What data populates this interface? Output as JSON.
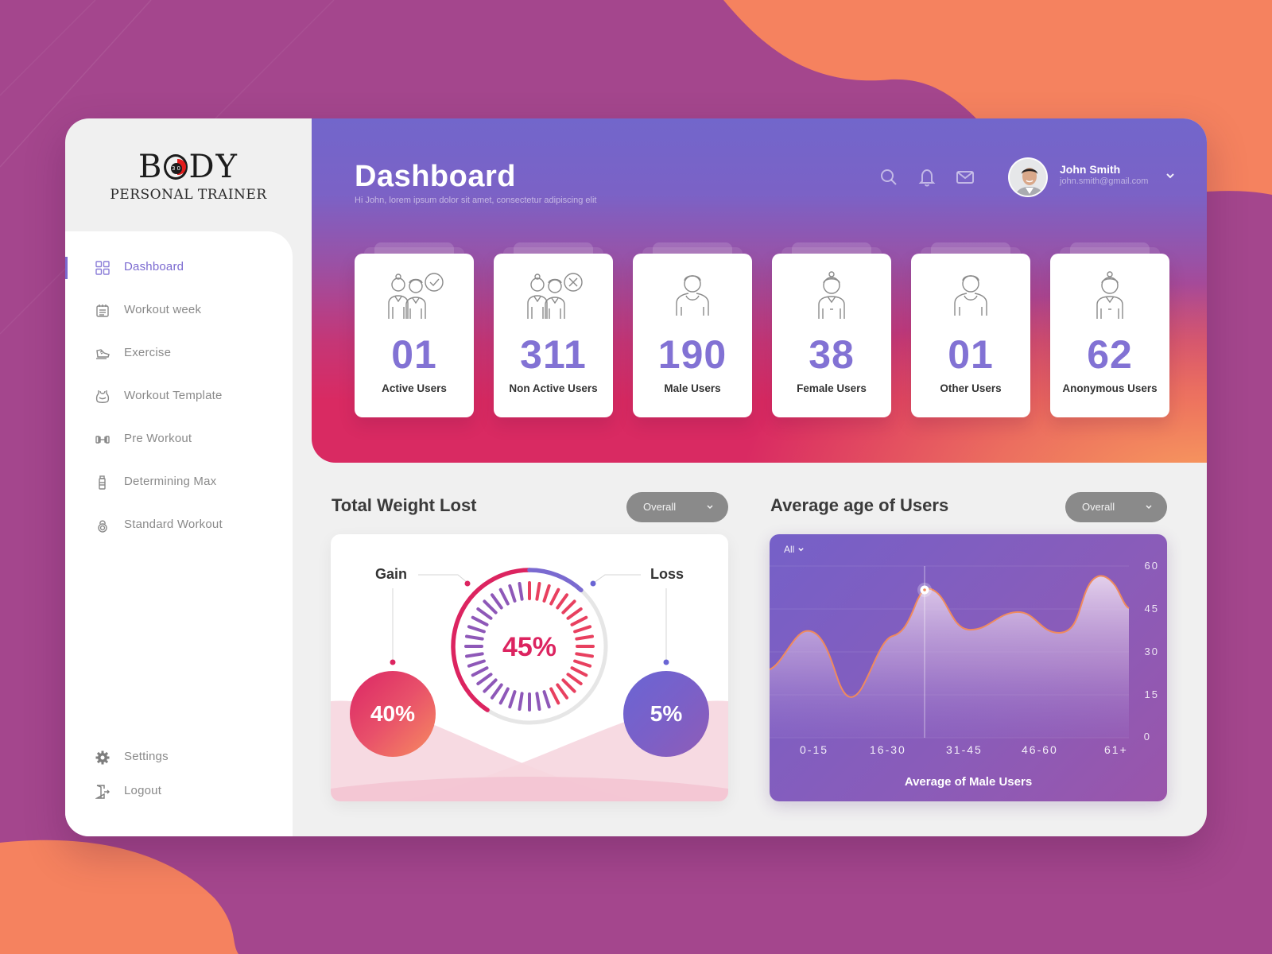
{
  "brand": {
    "logo_main": "BODY",
    "logo_sub": "PERSONAL TRAINER"
  },
  "sidebar": {
    "items": [
      {
        "label": "Dashboard",
        "icon": "grid-icon",
        "active": true
      },
      {
        "label": "Workout week",
        "icon": "calendar-icon",
        "active": false
      },
      {
        "label": "Exercise",
        "icon": "sneaker-icon",
        "active": false
      },
      {
        "label": "Workout Template",
        "icon": "tank-top-icon",
        "active": false
      },
      {
        "label": "Pre Workout",
        "icon": "dumbbell-icon",
        "active": false
      },
      {
        "label": "Determining Max",
        "icon": "bottle-icon",
        "active": false
      },
      {
        "label": "Standard Workout",
        "icon": "kettlebell-icon",
        "active": false
      }
    ],
    "bottom_items": [
      {
        "label": "Settings",
        "icon": "gear-icon"
      },
      {
        "label": "Logout",
        "icon": "logout-door-icon"
      }
    ]
  },
  "header": {
    "title": "Dashboard",
    "subtitle": "Hi John, lorem ipsum dolor sit amet, consectetur adipiscing elit",
    "icons": [
      "search-icon",
      "bell-icon",
      "mail-icon"
    ],
    "user": {
      "name": "John Smith",
      "email": "john.smith@gmail.com"
    }
  },
  "stats": [
    {
      "value": "01",
      "label": "Active Users",
      "icon": "users-check-icon"
    },
    {
      "value": "311",
      "label": "Non Active Users",
      "icon": "users-x-icon"
    },
    {
      "value": "190",
      "label": "Male Users",
      "icon": "male-user-icon"
    },
    {
      "value": "38",
      "label": "Female Users",
      "icon": "female-user-icon"
    },
    {
      "value": "01",
      "label": "Other Users",
      "icon": "other-user-icon"
    },
    {
      "value": "62",
      "label": "Anonymous Users",
      "icon": "anonymous-user-icon"
    }
  ],
  "weight": {
    "title": "Total Weight Lost",
    "dropdown": "Overall",
    "gain_label": "Gain",
    "loss_label": "Loss",
    "gain_value": "40%",
    "loss_value": "5%",
    "center_value": "45%"
  },
  "age": {
    "title": "Average age of Users",
    "dropdown": "Overall",
    "filter": "All",
    "xlabel": "Average of Male Users"
  },
  "colors": {
    "accent": "#7b6ad0",
    "stat_value": "#8272d4",
    "gain": "#dc2460",
    "loss": "#6a65d4",
    "line": "#f08a5d"
  },
  "chart_data": {
    "type": "area",
    "title": "Average age of Users",
    "xlabel": "Average of Male Users",
    "ylabel": "",
    "categories": [
      "0-15",
      "16-30",
      "31-45",
      "46-60",
      "61+"
    ],
    "y_ticks": [
      "60",
      "45",
      "30",
      "15",
      "0"
    ],
    "ylim": [
      0,
      60
    ],
    "series": [
      {
        "name": "Male Users",
        "x": [
          0,
          0.45,
          1.0,
          1.45,
          1.9,
          2.35,
          2.8,
          3.3,
          3.75,
          4.2,
          4.55,
          4.85
        ],
        "values": [
          18,
          39,
          17,
          36,
          52,
          37,
          41,
          35,
          57,
          44,
          30,
          46
        ]
      }
    ],
    "highlight_point": {
      "x_index": 4,
      "value": 52
    },
    "grid": true,
    "legend_position": "none"
  }
}
